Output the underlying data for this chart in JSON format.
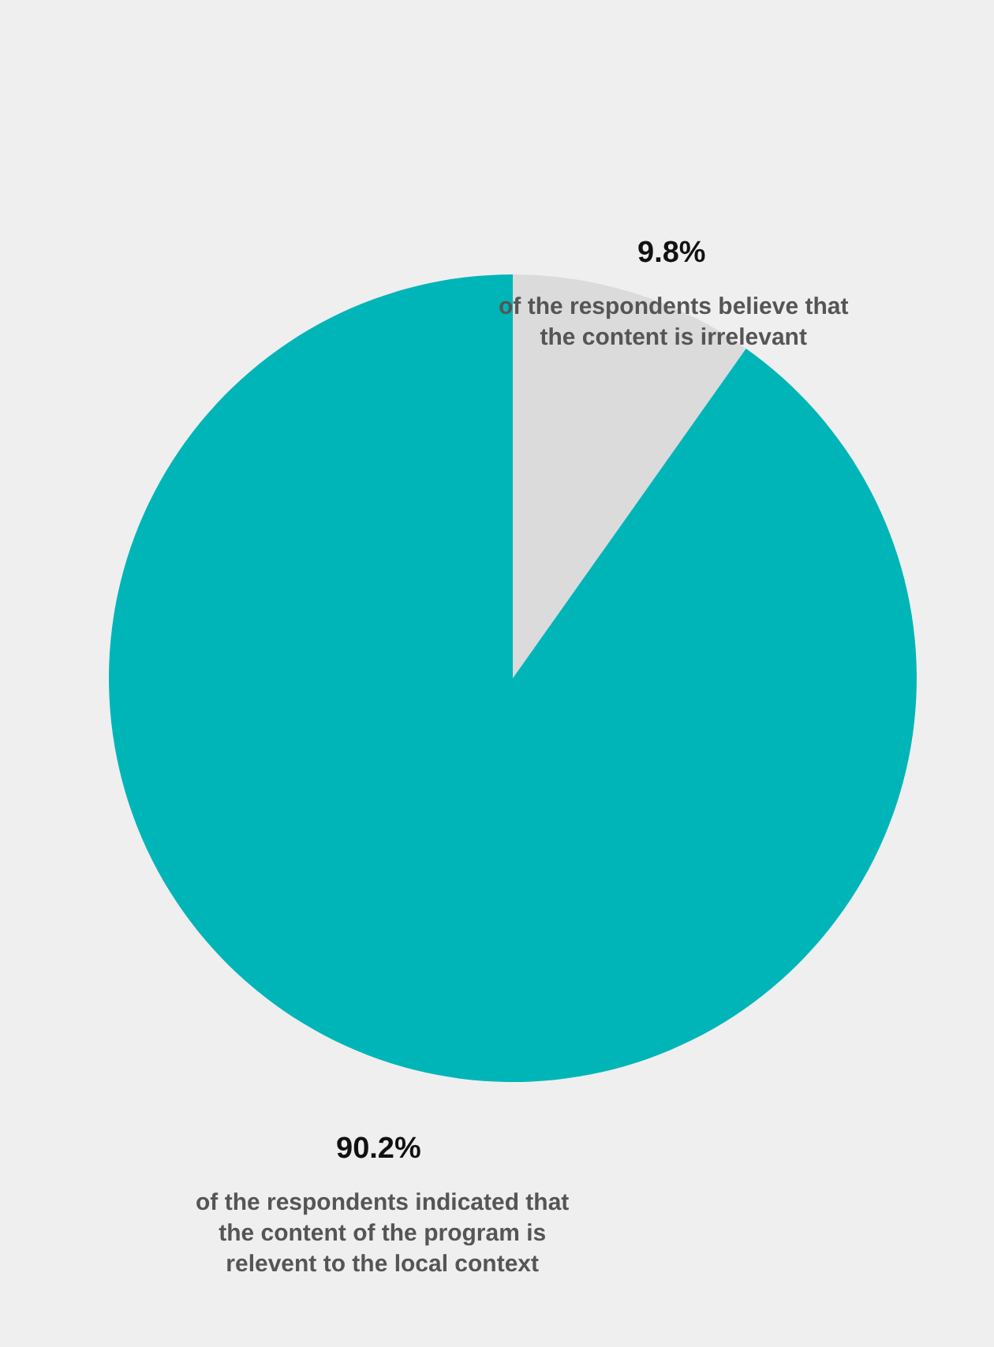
{
  "chart_data": {
    "type": "pie",
    "categories": [
      "of the respondents believe that the content is irrelevant",
      "of the respondents indicated that the content of the program is relevent to the local context"
    ],
    "values": [
      9.8,
      90.2
    ],
    "colors": [
      "#dbdbdb",
      "#00b5b8"
    ],
    "value_labels": [
      "9.8%",
      "90.2%"
    ],
    "legend": false
  }
}
